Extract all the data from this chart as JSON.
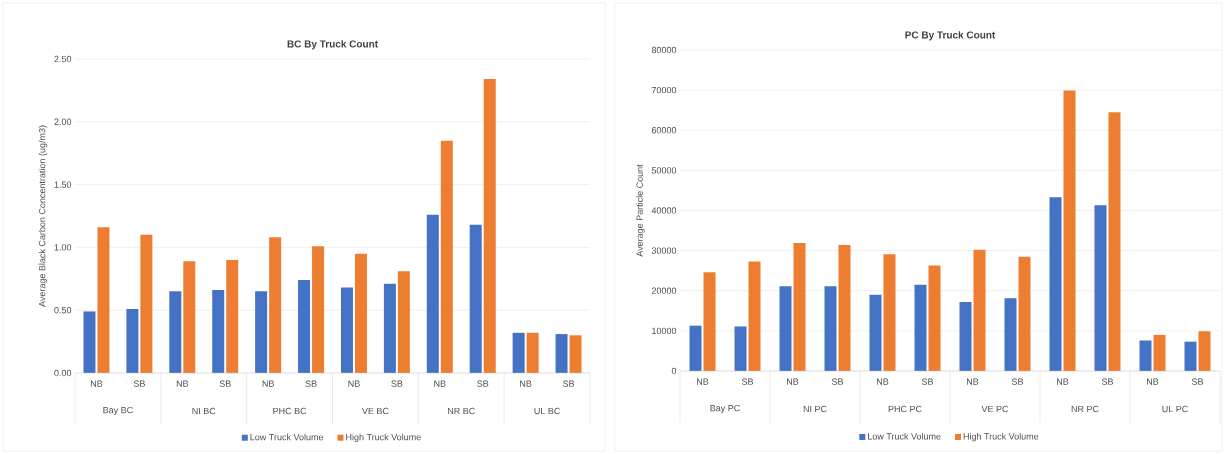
{
  "chart_data": [
    {
      "type": "bar",
      "title": "BC By Truck Count",
      "ylabel": "Average Black Carbon Concentration (ug/m3)",
      "categories": [
        "NB",
        "SB",
        "NB",
        "SB",
        "NB",
        "SB",
        "NB",
        "SB",
        "NB",
        "SB",
        "NB",
        "SB"
      ],
      "annotations": [
        "Bay BC",
        "NI BC",
        "PHC  BC",
        "VE BC",
        "NR BC",
        "UL BC"
      ],
      "series": [
        {
          "name": "Low Truck Volume",
          "color": "#4472c4",
          "values": [
            0.49,
            0.51,
            0.65,
            0.66,
            0.65,
            0.74,
            0.68,
            0.71,
            1.26,
            1.18,
            0.32,
            0.31
          ]
        },
        {
          "name": "High Truck Volume",
          "color": "#ed7d31",
          "values": [
            1.16,
            1.1,
            0.89,
            0.9,
            1.08,
            1.01,
            0.95,
            0.81,
            1.85,
            2.34,
            0.32,
            0.3
          ]
        }
      ],
      "ylim": [
        0,
        2.5
      ],
      "yticks": [
        {
          "value": 0,
          "label": "0.00"
        },
        {
          "value": 0.5,
          "label": "0.50"
        },
        {
          "value": 1,
          "label": "1.00"
        },
        {
          "value": 1.5,
          "label": "1.50"
        },
        {
          "value": 2,
          "label": "2.00"
        },
        {
          "value": 2.5,
          "label": "2.50"
        }
      ],
      "grid": "y",
      "legend": "bottom"
    },
    {
      "type": "bar",
      "title": "PC By Truck Count",
      "ylabel": "Average Particle Count",
      "categories": [
        "NB",
        "SB",
        "NB",
        "SB",
        "NB",
        "SB",
        "NB",
        "SB",
        "NB",
        "SB",
        "NB",
        "SB"
      ],
      "annotations": [
        "Bay PC",
        "NI PC",
        "PHC PC",
        "VE PC",
        "NR PC",
        "UL PC"
      ],
      "series": [
        {
          "name": "Low Truck Volume",
          "color": "#4472c4",
          "values": [
            11300,
            11100,
            21100,
            21100,
            19000,
            21500,
            17200,
            18100,
            43300,
            41300,
            7600,
            7300
          ]
        },
        {
          "name": "High Truck Volume",
          "color": "#ed7d31",
          "values": [
            24600,
            27300,
            31900,
            31400,
            29100,
            26300,
            30200,
            28500,
            69900,
            64500,
            9000,
            9900
          ]
        }
      ],
      "ylim": [
        0,
        80000
      ],
      "yticks": [
        0,
        10000,
        20000,
        30000,
        40000,
        50000,
        60000,
        70000,
        80000
      ],
      "grid": "y",
      "legend": "bottom"
    }
  ]
}
